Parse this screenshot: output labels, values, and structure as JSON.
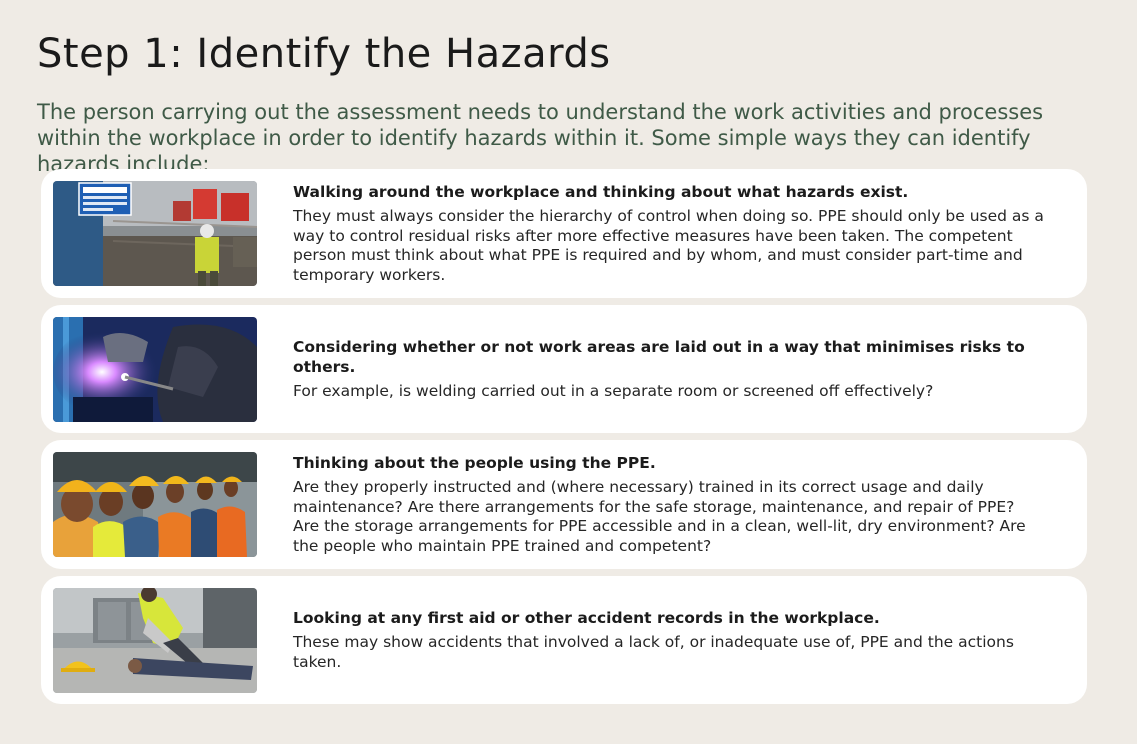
{
  "page": {
    "title": "Step 1: Identify the Hazards",
    "intro": "The person carrying out the assessment needs to understand the work activities and processes within the workplace in order to identify hazards within it. Some simple ways they can identify hazards include:"
  },
  "cards": [
    {
      "image": "construction-site-photo",
      "heading": "Walking around the workplace and thinking about what hazards exist.",
      "body": "They must always consider the hierarchy of control when doing so. PPE should only be used as a way to control residual risks after more effective measures have been taken. The competent person must think about what PPE is required and by whom, and must consider part-time and temporary workers."
    },
    {
      "image": "welding-photo",
      "heading": "Considering whether or not work areas are laid out in a way that minimises risks to others.",
      "body": "For example, is welding carried out in a separate room or screened off effectively?"
    },
    {
      "image": "workers-in-hard-hats-photo",
      "heading": "Thinking about the people using the PPE.",
      "body": "Are they properly instructed and (where necessary) trained in its correct usage and daily maintenance? Are there arrangements for the safe storage, maintenance, and repair of PPE? Are the storage arrangements for PPE accessible and in a clean, well-lit, dry environment? Are the people who maintain PPE trained and competent?"
    },
    {
      "image": "first-aid-accident-photo",
      "heading": "Looking at any first aid or other accident records in the workplace.",
      "body": "These may show accidents that involved a lack of, or inadequate use of, PPE and the actions taken."
    }
  ],
  "colors": {
    "background": "#efebe5",
    "intro_text": "#3f5a47",
    "card": "#ffffff"
  }
}
